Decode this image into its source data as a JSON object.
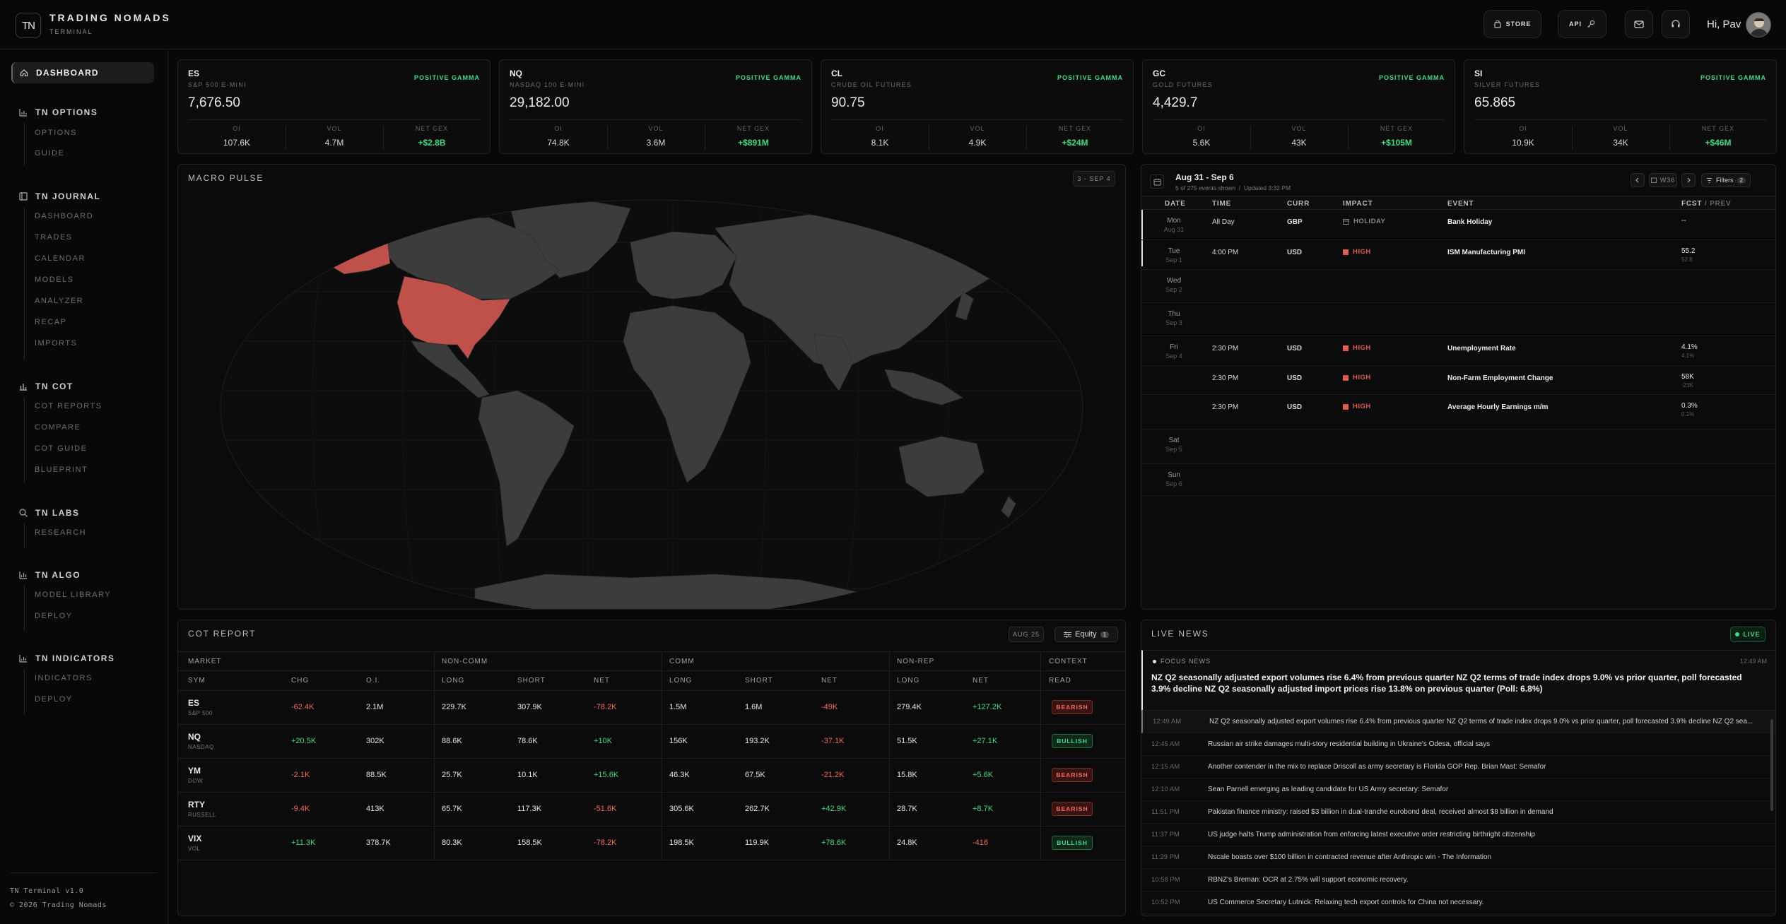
{
  "header": {
    "logo": "TN",
    "brand": "TRADING NOMADS",
    "brand_sub": "TERMINAL",
    "store_label": "STORE",
    "api_label": "API",
    "greeting": "Hi, Pav"
  },
  "sidebar": {
    "active": "DASHBOARD",
    "sections": [
      {
        "title": "TN OPTIONS",
        "items": [
          "OPTIONS",
          "GUIDE"
        ]
      },
      {
        "title": "TN JOURNAL",
        "items": [
          "DASHBOARD",
          "TRADES",
          "CALENDAR",
          "MODELS",
          "ANALYZER",
          "RECAP",
          "IMPORTS"
        ]
      },
      {
        "title": "TN COT",
        "items": [
          "COT REPORTS",
          "COMPARE",
          "COT GUIDE",
          "BLUEPRINT"
        ]
      },
      {
        "title": "TN LABS",
        "items": [
          "RESEARCH"
        ]
      },
      {
        "title": "TN ALGO",
        "items": [
          "MODEL LIBRARY",
          "DEPLOY"
        ]
      },
      {
        "title": "TN INDICATORS",
        "items": [
          "INDICATORS",
          "DEPLOY"
        ]
      }
    ],
    "footer_version": "TN Terminal v1.0",
    "footer_copy": "© 2026 Trading Nomads"
  },
  "tickers": [
    {
      "sym": "ES",
      "name": "S&P 500 E-MINI",
      "gamma": "POSITIVE GAMMA",
      "price": "7,676.50",
      "oi_label": "OI",
      "oi": "107.6K",
      "vol_label": "VOL",
      "vol": "4.7M",
      "gex_label": "NET GEX",
      "gex": "+$2.8B"
    },
    {
      "sym": "NQ",
      "name": "NASDAQ 100 E-MINI",
      "gamma": "POSITIVE GAMMA",
      "price": "29,182.00",
      "oi_label": "OI",
      "oi": "74.8K",
      "vol_label": "VOL",
      "vol": "3.6M",
      "gex_label": "NET GEX",
      "gex": "+$891M"
    },
    {
      "sym": "CL",
      "name": "CRUDE OIL FUTURES",
      "gamma": "POSITIVE GAMMA",
      "price": "90.75",
      "oi_label": "OI",
      "oi": "8.1K",
      "vol_label": "VOL",
      "vol": "4.9K",
      "gex_label": "NET GEX",
      "gex": "+$24M"
    },
    {
      "sym": "GC",
      "name": "GOLD FUTURES",
      "gamma": "POSITIVE GAMMA",
      "price": "4,429.7",
      "oi_label": "OI",
      "oi": "5.6K",
      "vol_label": "VOL",
      "vol": "43K",
      "gex_label": "NET GEX",
      "gex": "+$105M"
    },
    {
      "sym": "SI",
      "name": "SILVER FUTURES",
      "gamma": "POSITIVE GAMMA",
      "price": "65.865",
      "oi_label": "OI",
      "oi": "10.9K",
      "vol_label": "VOL",
      "vol": "34K",
      "gex_label": "NET GEX",
      "gex": "+$46M"
    }
  ],
  "macro": {
    "title": "MACRO PULSE",
    "range": "3 - SEP 4",
    "highlight_color": "#c0504a",
    "highlighted_regions": [
      "United States",
      "Alaska"
    ]
  },
  "calendar": {
    "range": "Aug 31 - Sep 6",
    "events_shown": "5 of 275 events shown",
    "updated": "Updated 3:32 PM",
    "week": "W36",
    "filters_label": "Filters",
    "filters_count": "2",
    "cols": {
      "date": "DATE",
      "time": "TIME",
      "curr": "CURR",
      "impact": "IMPACT",
      "event": "EVENT",
      "fcst": "FCST",
      "prev": "/ PREV"
    },
    "rows": [
      {
        "day": "Mon",
        "date": "Aug 31",
        "time": "All Day",
        "curr": "GBP",
        "impact": "HOLIDAY",
        "event": "Bank Holiday",
        "fcst": "--",
        "prev": ""
      },
      {
        "day": "Tue",
        "date": "Sep 1",
        "time": "4:00 PM",
        "curr": "USD",
        "impact": "HIGH",
        "event": "ISM Manufacturing PMI",
        "fcst": "55.2",
        "prev": "52.8"
      },
      {
        "day": "Wed",
        "date": "Sep 2",
        "time": "",
        "curr": "",
        "impact": "",
        "event": "",
        "fcst": "",
        "prev": ""
      },
      {
        "day": "Thu",
        "date": "Sep 3",
        "time": "",
        "curr": "",
        "impact": "",
        "event": "",
        "fcst": "",
        "prev": ""
      },
      {
        "day": "Fri",
        "date": "Sep 4",
        "time": "2:30 PM",
        "curr": "USD",
        "impact": "HIGH",
        "event": "Unemployment Rate",
        "fcst": "4.1%",
        "prev": "4.1%"
      },
      {
        "day": "",
        "date": "",
        "time": "2:30 PM",
        "curr": "USD",
        "impact": "HIGH",
        "event": "Non-Farm Employment Change",
        "fcst": "58K",
        "prev": "-23K"
      },
      {
        "day": "",
        "date": "",
        "time": "2:30 PM",
        "curr": "USD",
        "impact": "HIGH",
        "event": "Average Hourly Earnings m/m",
        "fcst": "0.3%",
        "prev": "0.1%"
      },
      {
        "day": "Sat",
        "date": "Sep 5",
        "time": "",
        "curr": "",
        "impact": "",
        "event": "",
        "fcst": "",
        "prev": ""
      },
      {
        "day": "Sun",
        "date": "Sep 6",
        "time": "",
        "curr": "",
        "impact": "",
        "event": "",
        "fcst": "",
        "prev": ""
      }
    ]
  },
  "cot": {
    "title": "COT REPORT",
    "date": "AUG 25",
    "filter": "Equity",
    "filter_count": "1",
    "groups": {
      "market": "MARKET",
      "noncomm": "NON-COMM",
      "comm": "COMM",
      "nonrep": "NON-REP",
      "context": "CONTEXT"
    },
    "cols": {
      "sym": "SYM",
      "chg": "CHG",
      "oi": "O.I.",
      "long": "LONG",
      "short": "SHORT",
      "net": "NET",
      "read": "READ"
    },
    "rows": [
      {
        "sym": "ES",
        "sub": "S&P 500",
        "chg": "-62.4K",
        "oi": "2.1M",
        "nc_long": "229.7K",
        "nc_short": "307.9K",
        "nc_net": "-78.2K",
        "c_long": "1.5M",
        "c_short": "1.6M",
        "c_net": "-49K",
        "nr_long": "279.4K",
        "nr_net": "+127.2K",
        "read": "BEARISH"
      },
      {
        "sym": "NQ",
        "sub": "NASDAQ",
        "chg": "+20.5K",
        "oi": "302K",
        "nc_long": "88.6K",
        "nc_short": "78.6K",
        "nc_net": "+10K",
        "c_long": "156K",
        "c_short": "193.2K",
        "c_net": "-37.1K",
        "nr_long": "51.5K",
        "nr_net": "+27.1K",
        "read": "BULLISH"
      },
      {
        "sym": "YM",
        "sub": "DOW",
        "chg": "-2.1K",
        "oi": "88.5K",
        "nc_long": "25.7K",
        "nc_short": "10.1K",
        "nc_net": "+15.6K",
        "c_long": "46.3K",
        "c_short": "67.5K",
        "c_net": "-21.2K",
        "nr_long": "15.8K",
        "nr_net": "+5.6K",
        "read": "BEARISH"
      },
      {
        "sym": "RTY",
        "sub": "RUSSELL",
        "chg": "-9.4K",
        "oi": "413K",
        "nc_long": "65.7K",
        "nc_short": "117.3K",
        "nc_net": "-51.6K",
        "c_long": "305.6K",
        "c_short": "262.7K",
        "c_net": "+42.9K",
        "nr_long": "28.7K",
        "nr_net": "+8.7K",
        "read": "BEARISH"
      },
      {
        "sym": "VIX",
        "sub": "VOL",
        "chg": "+11.3K",
        "oi": "378.7K",
        "nc_long": "80.3K",
        "nc_short": "158.5K",
        "nc_net": "-78.2K",
        "c_long": "198.5K",
        "c_short": "119.9K",
        "c_net": "+78.6K",
        "nr_long": "24.8K",
        "nr_net": "-416",
        "read": "BULLISH"
      }
    ]
  },
  "news": {
    "title": "LIVE NEWS",
    "live": "LIVE",
    "focus_label": "FOCUS NEWS",
    "focus_time": "12:49 AM",
    "focus_text": "NZ Q2 seasonally adjusted export volumes rise 6.4% from previous quarter NZ Q2 terms of trade index drops 9.0% vs prior quarter, poll forecasted 3.9% decline NZ Q2 seasonally adjusted import prices rise 13.8% on previous quarter (Poll: 6.8%)",
    "items": [
      {
        "time": "12:49 AM",
        "text": "NZ Q2 seasonally adjusted export volumes rise 6.4% from previous quarter NZ Q2 terms of trade index drops 9.0% vs prior quarter, poll forecasted 3.9% decline NZ Q2 sea..."
      },
      {
        "time": "12:45 AM",
        "text": "Russian air strike damages multi-story residential building in Ukraine's Odesa, official says"
      },
      {
        "time": "12:15 AM",
        "text": "Another contender in the mix to replace Driscoll as army secretary is Florida GOP Rep. Brian Mast: Semafor"
      },
      {
        "time": "12:10 AM",
        "text": "Sean Parnell emerging as leading candidate for US Army secretary: Semafor"
      },
      {
        "time": "11:51 PM",
        "text": "Pakistan finance ministry: raised $3 billion in dual-tranche eurobond deal, received almost $8 billion in demand"
      },
      {
        "time": "11:37 PM",
        "text": "US judge halts Trump administration from enforcing latest executive order restricting birthright citizenship"
      },
      {
        "time": "11:29 PM",
        "text": "Nscale boasts over $100 billion in contracted revenue after Anthropic win - The Information"
      },
      {
        "time": "10:58 PM",
        "text": "RBNZ's Breman: OCR at 2.75% will support economic recovery."
      },
      {
        "time": "10:52 PM",
        "text": "US Commerce Secretary Lutnick: Relaxing tech export controls for China not necessary."
      }
    ]
  },
  "colors": {
    "positive": "#3ddc84",
    "negative": "#f06b5e",
    "impact_high": "#e05a4e",
    "accent_map": "#c0504a"
  }
}
